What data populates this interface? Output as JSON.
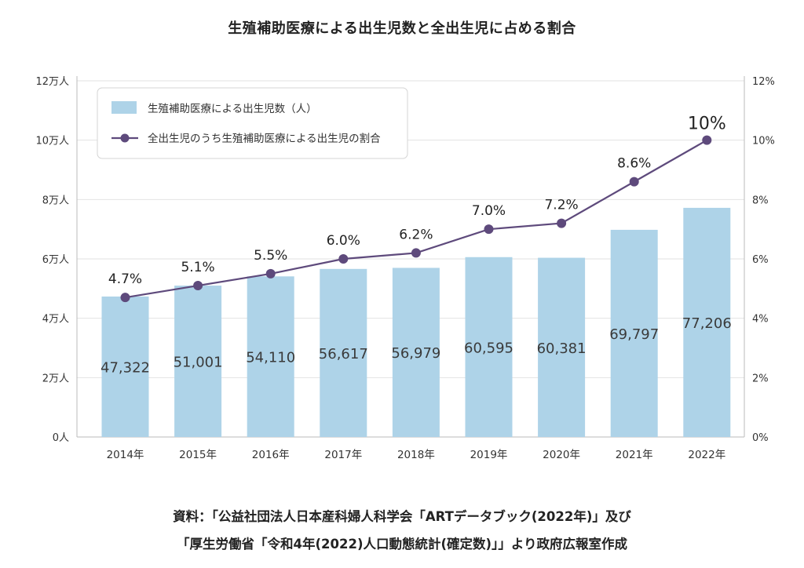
{
  "chart_data": {
    "type": "bar",
    "title": "生殖補助医療による出生児数と全出生児に占める割合",
    "categories": [
      "2014年",
      "2015年",
      "2016年",
      "2017年",
      "2018年",
      "2019年",
      "2020年",
      "2021年",
      "2022年"
    ],
    "series": [
      {
        "name": "生殖補助医療による出生児数（人）",
        "type": "bar",
        "axis": "left",
        "values": [
          47322,
          51001,
          54110,
          56617,
          56979,
          60595,
          60381,
          69797,
          77206
        ],
        "labels": [
          "47,322",
          "51,001",
          "54,110",
          "56,617",
          "56,979",
          "60,595",
          "60,381",
          "69,797",
          "77,206"
        ],
        "color": "#aed3e8"
      },
      {
        "name": "全出生児のうち生殖補助医療による出生児の割合",
        "type": "line",
        "axis": "right",
        "values": [
          4.7,
          5.1,
          5.5,
          6.0,
          6.2,
          7.0,
          7.2,
          8.6,
          10
        ],
        "labels": [
          "4.7%",
          "5.1%",
          "5.5%",
          "6.0%",
          "6.2%",
          "7.0%",
          "7.2%",
          "8.6%",
          "10%"
        ],
        "color": "#5e4a7c"
      }
    ],
    "y_left": {
      "min": 0,
      "max": 120000,
      "ticks": [
        0,
        20000,
        40000,
        60000,
        80000,
        100000,
        120000
      ],
      "tick_labels": [
        "0人",
        "2万人",
        "4万人",
        "6万人",
        "8万人",
        "10万人",
        "12万人"
      ]
    },
    "y_right": {
      "min": 0,
      "max": 12,
      "ticks": [
        0,
        2,
        4,
        6,
        8,
        10,
        12
      ],
      "tick_labels": [
        "0%",
        "2%",
        "4%",
        "6%",
        "8%",
        "10%",
        "12%"
      ]
    },
    "legend_position": "top-left",
    "grid": true
  },
  "source": {
    "line1": "資料：「公益社団法人日本産科婦人科学会「ARTデータブック(2022年)」及び",
    "line2": "「厚生労働省「令和4年(2022)人口動態統計(確定数)」」より政府広報室作成"
  }
}
